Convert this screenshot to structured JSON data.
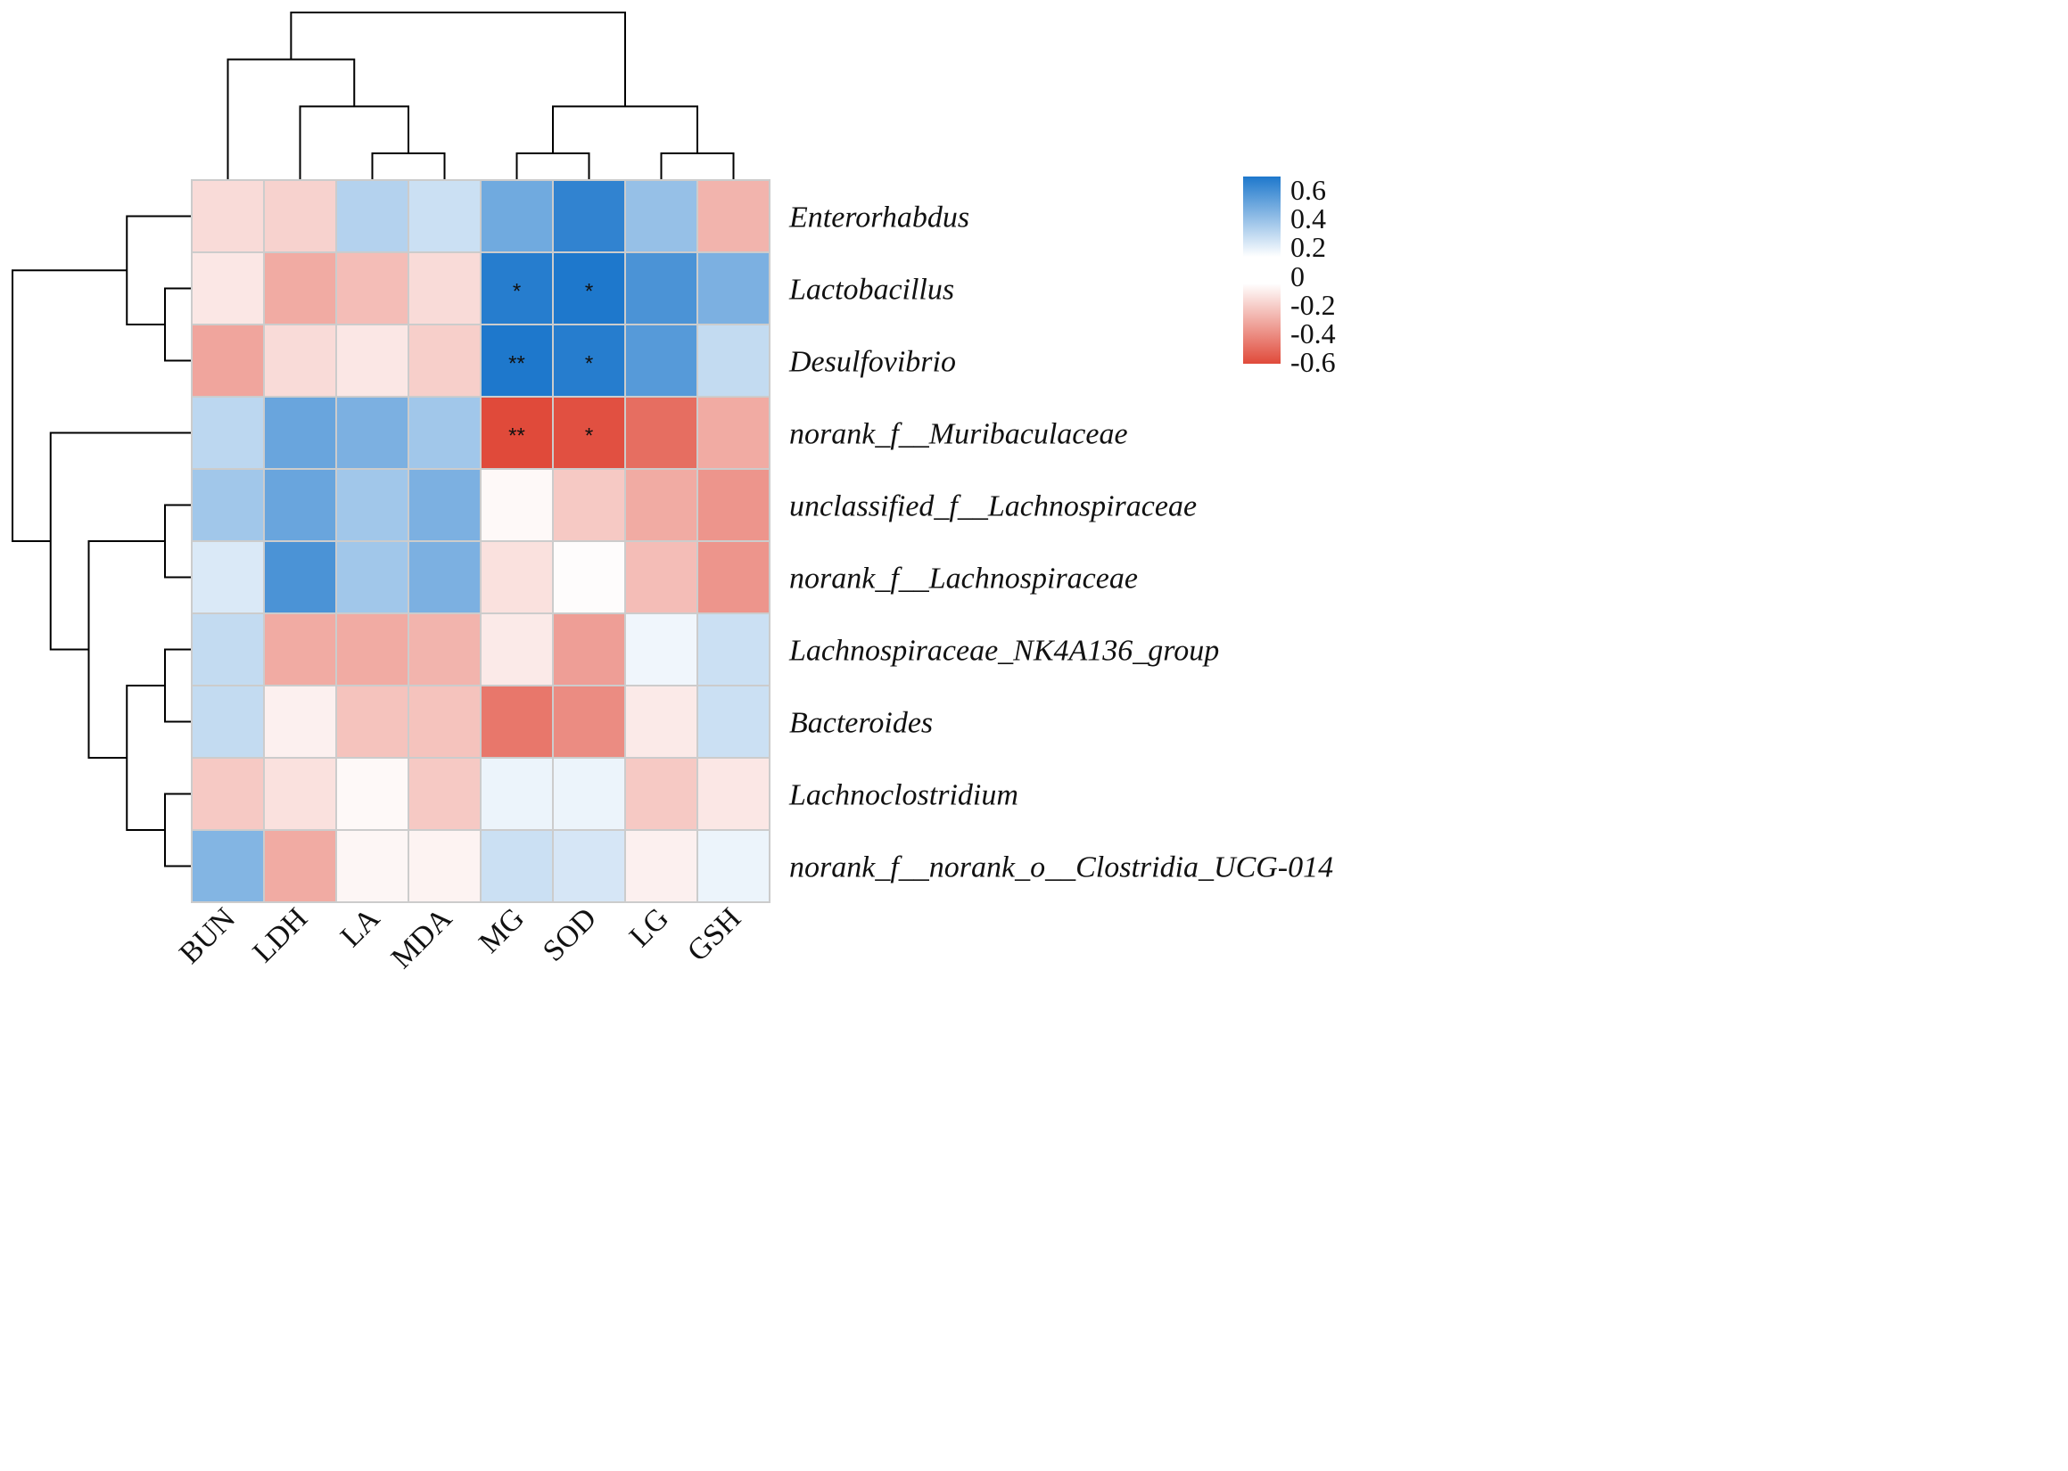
{
  "chart_data": {
    "type": "heatmap",
    "title": "",
    "columns": [
      "BUN",
      "LDH",
      "LA",
      "MDA",
      "MG",
      "SOD",
      "LG",
      "GSH"
    ],
    "rows": [
      "Enterorhabdus",
      "Lactobacillus",
      "Desulfovibrio",
      "norank_f__Muribaculaceae",
      "unclassified_f__Lachnospiraceae",
      "norank_f__Lachnospiraceae",
      "Lachnospiraceae_NK4A136_group",
      "Bacteroides",
      "Lachnoclostridium",
      "norank_f__norank_o__Clostridia_UCG-014"
    ],
    "values": [
      [
        -0.12,
        -0.15,
        0.2,
        0.14,
        0.38,
        0.55,
        0.28,
        -0.25
      ],
      [
        -0.08,
        -0.28,
        -0.22,
        -0.12,
        0.58,
        0.6,
        0.48,
        0.35
      ],
      [
        -0.3,
        -0.12,
        -0.08,
        -0.16,
        0.65,
        0.58,
        0.45,
        0.16
      ],
      [
        0.18,
        0.4,
        0.35,
        0.25,
        -0.62,
        -0.58,
        -0.48,
        -0.28
      ],
      [
        0.25,
        0.4,
        0.25,
        0.35,
        -0.02,
        -0.18,
        -0.28,
        -0.35
      ],
      [
        0.1,
        0.48,
        0.25,
        0.35,
        -0.1,
        -0.01,
        -0.22,
        -0.35
      ],
      [
        0.16,
        -0.28,
        -0.28,
        -0.25,
        -0.07,
        -0.32,
        0.04,
        0.14
      ],
      [
        0.16,
        -0.05,
        -0.2,
        -0.2,
        -0.45,
        -0.38,
        -0.07,
        0.14
      ],
      [
        -0.18,
        -0.1,
        -0.02,
        -0.18,
        0.05,
        0.05,
        -0.18,
        -0.08
      ],
      [
        0.33,
        -0.28,
        -0.03,
        -0.04,
        0.14,
        0.11,
        -0.05,
        0.05
      ]
    ],
    "significance": [
      [
        "",
        "",
        "",
        "",
        "",
        "",
        "",
        ""
      ],
      [
        "",
        "",
        "",
        "",
        "*",
        "*",
        "",
        ""
      ],
      [
        "",
        "",
        "",
        "",
        "**",
        "*",
        "",
        ""
      ],
      [
        "",
        "",
        "",
        "",
        "**",
        "*",
        "",
        ""
      ],
      [
        "",
        "",
        "",
        "",
        "",
        "",
        "",
        ""
      ],
      [
        "",
        "",
        "",
        "",
        "",
        "",
        "",
        ""
      ],
      [
        "",
        "",
        "",
        "",
        "",
        "",
        "",
        ""
      ],
      [
        "",
        "",
        "",
        "",
        "",
        "",
        "",
        ""
      ],
      [
        "",
        "",
        "",
        "",
        "",
        "",
        "",
        ""
      ],
      [
        "",
        "",
        "",
        "",
        "",
        "",
        "",
        ""
      ]
    ],
    "color_range": [
      -0.6,
      0.6
    ],
    "colors": {
      "positive": "#1e78cc",
      "negative": "#e04a3a",
      "zero": "#ffffff",
      "grid": "#cccccc",
      "line": "#000000"
    },
    "legend": {
      "placement": "top-right",
      "positive_ticks": [
        "0.6",
        "0.4",
        "0.2"
      ],
      "zero_tick": "0",
      "negative_ticks": [
        "-0.2",
        "-0.4",
        "-0.6"
      ]
    },
    "column_dendrogram": {
      "order": [
        "BUN",
        "LDH",
        "LA",
        "MDA",
        "MG",
        "SOD",
        "LG",
        "GSH"
      ],
      "merges": [
        [
          "LA",
          "MDA"
        ],
        [
          "LDH",
          "LA+MDA"
        ],
        [
          "BUN",
          "LDH+LA+MDA"
        ],
        [
          "MG",
          "SOD"
        ],
        [
          "LG",
          "GSH"
        ],
        [
          "MG+SOD",
          "LG+GSH"
        ],
        [
          "BUN+LDH+LA+MDA",
          "MG+SOD+LG+GSH"
        ]
      ]
    },
    "row_dendrogram": {
      "order": [
        "Enterorhabdus",
        "Lactobacillus",
        "Desulfovibrio",
        "norank_f__Muribaculaceae",
        "unclassified_f__Lachnospiraceae",
        "norank_f__Lachnospiraceae",
        "Lachnospiraceae_NK4A136_group",
        "Bacteroides",
        "Lachnoclostridium",
        "norank_f__norank_o__Clostridia_UCG-014"
      ],
      "merges": [
        [
          "Lactobacillus",
          "Desulfovibrio"
        ],
        [
          "Enterorhabdus",
          "Lactobacillus+Desulfovibrio"
        ],
        [
          "unclassified_f__Lachnospiraceae",
          "norank_f__Lachnospiraceae"
        ],
        [
          "Lachnospiraceae_NK4A136_group",
          "Bacteroides"
        ],
        [
          "Lachnoclostridium",
          "norank_f__norank_o__Clostridia_UCG-014"
        ],
        [
          "Lachnospiraceae_NK4A136_group+Bacteroides",
          "Lachnoclostridium+norank_f__norank_o__Clostridia_UCG-014"
        ],
        [
          "unclassified_f__Lachnospiraceae+norank_f__Lachnospiraceae",
          "Lachnospiraceae_NK4A136_group+Bacteroides+Lachnoclostridium+norank_f__norank_o__Clostridia_UCG-014"
        ],
        [
          "norank_f__Muribaculaceae",
          "unclassified_f__Lachnospiraceae+norank_f__Lachnospiraceae+Lachnospiraceae_NK4A136_group+Bacteroides+Lachnoclostridium+norank_f__norank_o__Clostridia_UCG-014"
        ],
        [
          "Enterorhabdus+Lactobacillus+Desulfovibrio",
          "norank_f__Muribaculaceae+unclassified_f__Lachnospiraceae+norank_f__Lachnospiraceae+Lachnospiraceae_NK4A136_group+Bacteroides+Lachnoclostridium+norank_f__norank_o__Clostridia_UCG-014"
        ]
      ]
    }
  }
}
